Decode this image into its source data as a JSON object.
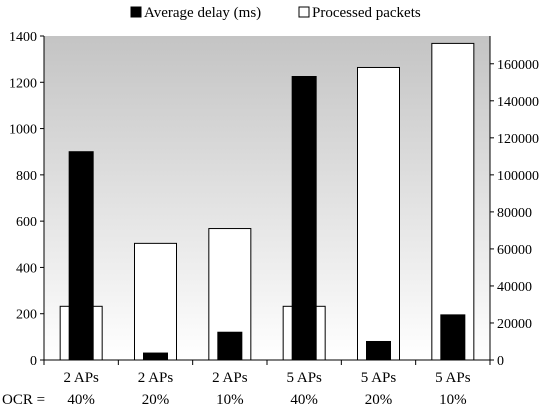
{
  "chart_data": {
    "type": "bar",
    "title": "",
    "xlabel": "",
    "row_prefix": "OCR =",
    "categories": [
      [
        "2 APs",
        "40%"
      ],
      [
        "2 APs",
        "20%"
      ],
      [
        "2 APs",
        "10%"
      ],
      [
        "5 APs",
        "40%"
      ],
      [
        "5 APs",
        "20%"
      ],
      [
        "5 APs",
        "10%"
      ]
    ],
    "series": [
      {
        "name": "Average delay (ms)",
        "axis": "left",
        "color": "#000000",
        "values": [
          900,
          30,
          120,
          1225,
          80,
          195
        ]
      },
      {
        "name": "Processed packets",
        "axis": "right",
        "color": "#ffffff",
        "values": [
          29000,
          63000,
          71000,
          29000,
          158000,
          171000
        ]
      }
    ],
    "ylim_left": [
      0,
      1400
    ],
    "yticks_left": [
      0,
      200,
      400,
      600,
      800,
      1000,
      1200,
      1400
    ],
    "ylim_right": [
      0,
      175000
    ],
    "yticks_right": [
      0,
      20000,
      40000,
      60000,
      80000,
      100000,
      120000,
      140000,
      160000
    ],
    "legend_position": "top",
    "background": "vertical gradient (gray to white)",
    "grid": false
  }
}
